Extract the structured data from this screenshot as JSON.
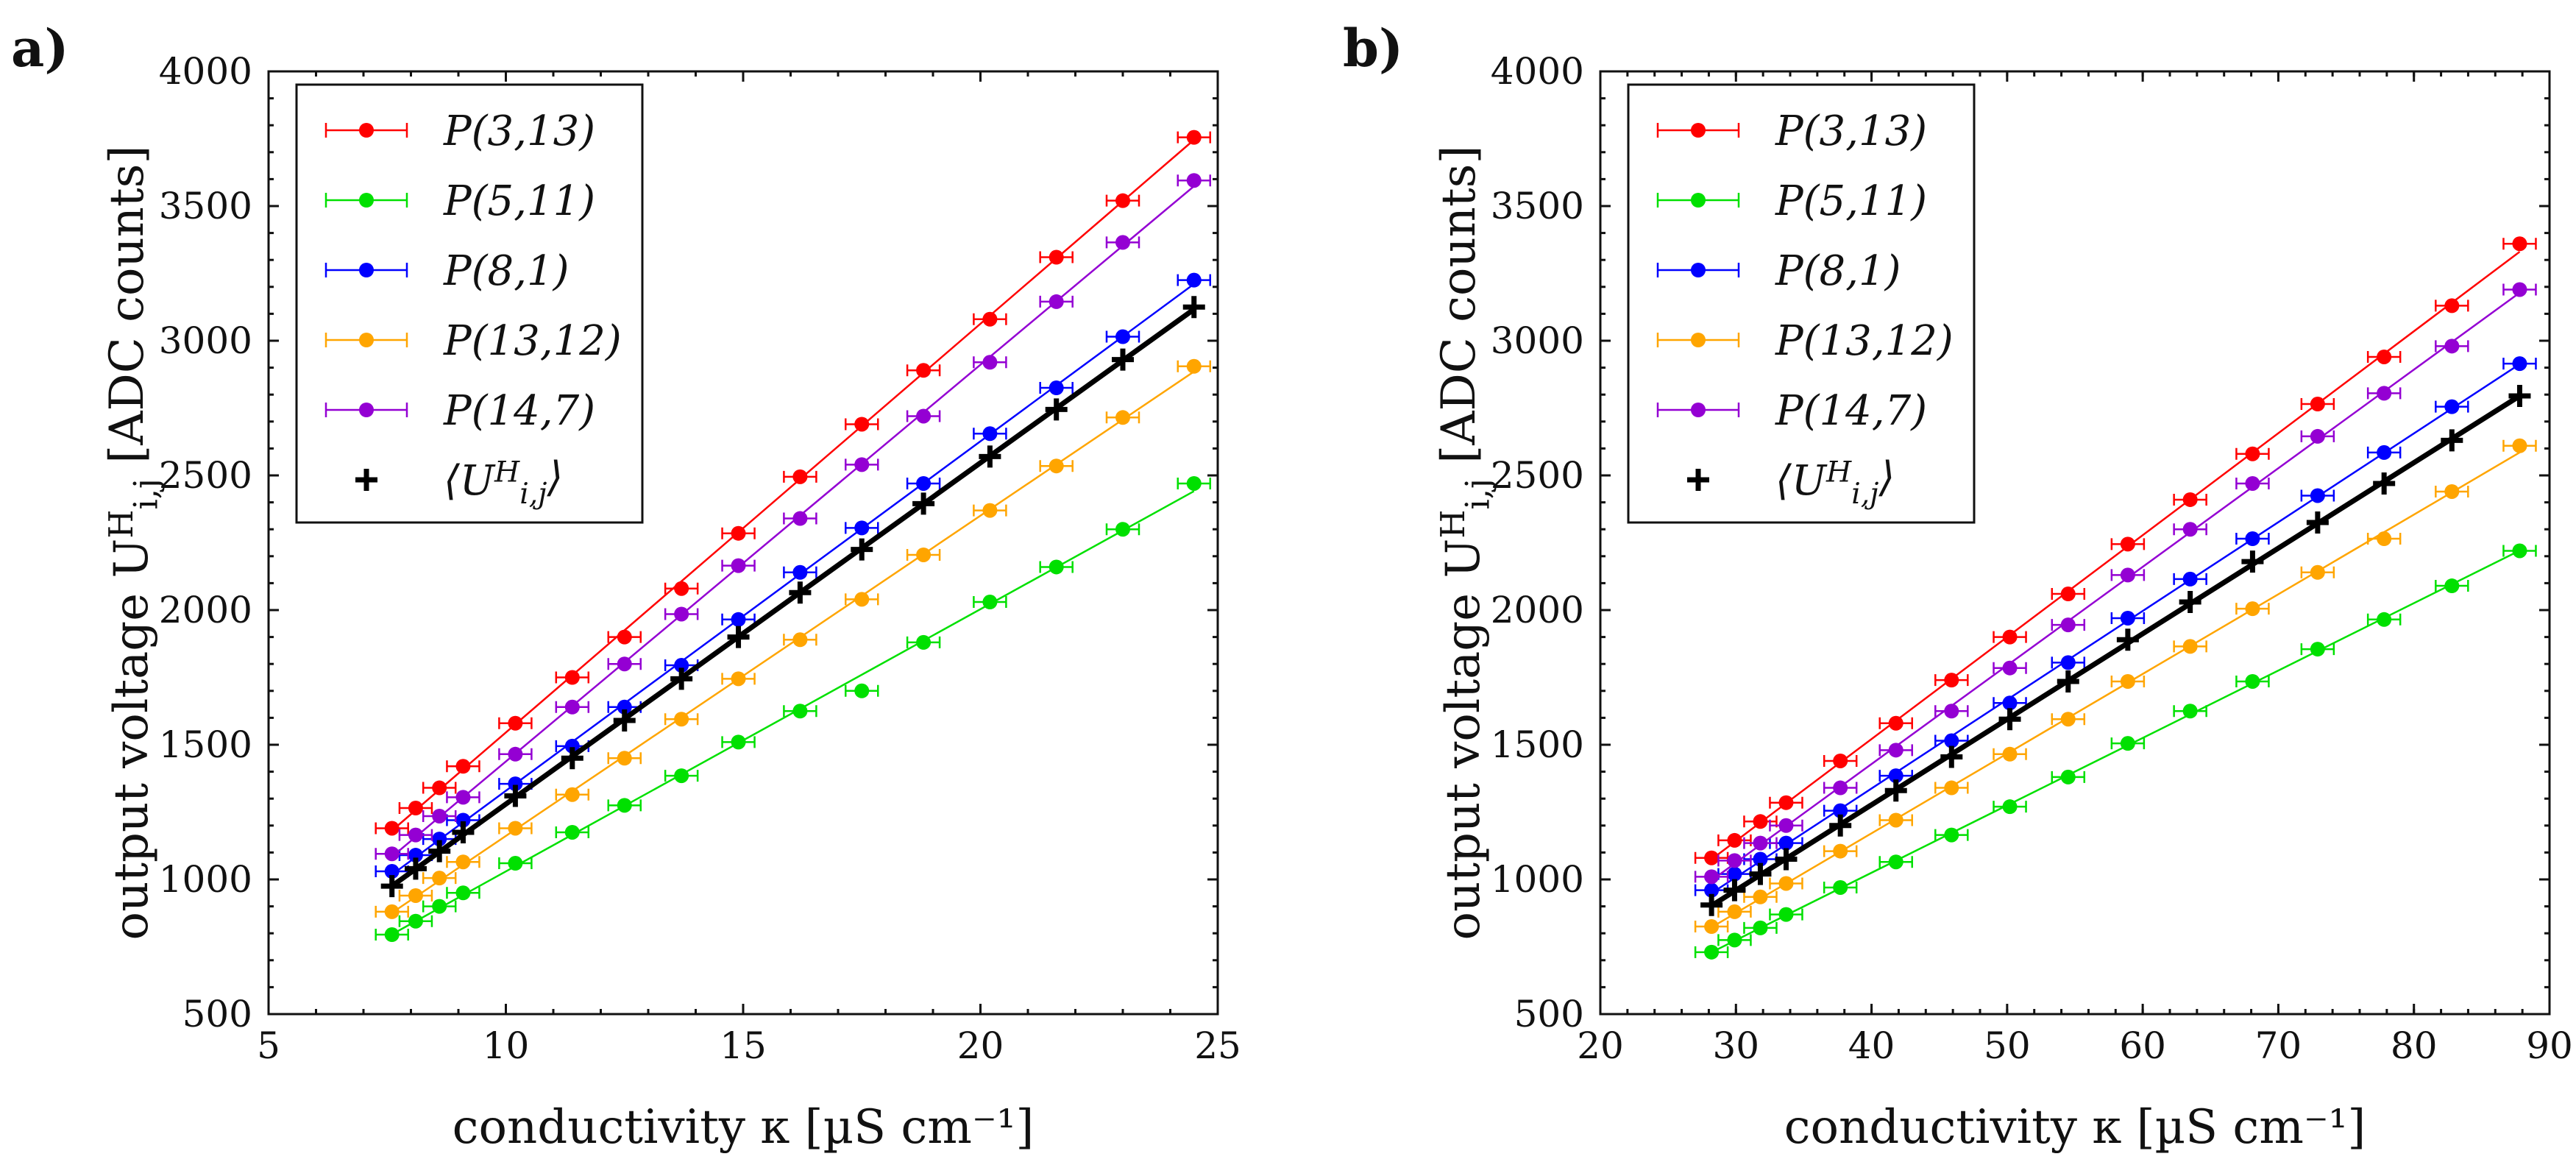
{
  "chart_data": [
    {
      "type": "scatter",
      "panel_label": "a)",
      "xlabel": "conductivity κ [µS cm⁻¹]",
      "ylabel": "output voltage U^H_{i,j} [ADC counts]",
      "xlim": [
        5,
        25
      ],
      "ylim": [
        500,
        4000
      ],
      "xticks": [
        5,
        10,
        15,
        20,
        25
      ],
      "yticks": [
        500,
        1000,
        1500,
        2000,
        2500,
        3000,
        3500,
        4000
      ],
      "grid": false,
      "legend_position": "top-left",
      "x": [
        7.6,
        8.1,
        8.6,
        9.1,
        10.2,
        11.4,
        12.5,
        13.7,
        14.9,
        16.2,
        17.5,
        18.8,
        20.2,
        21.6,
        23.0,
        24.5
      ],
      "series": [
        {
          "name": "P(3,13)",
          "color": "#ff0000",
          "marker": "dot",
          "values": [
            1190,
            1265,
            1340,
            1420,
            1580,
            1750,
            1900,
            2080,
            2285,
            2495,
            2690,
            2890,
            3080,
            3310,
            3520,
            3755
          ]
        },
        {
          "name": "P(5,11)",
          "color": "#00e000",
          "marker": "dot",
          "values": [
            795,
            845,
            900,
            950,
            1060,
            1175,
            1275,
            1385,
            1510,
            1625,
            1700,
            1880,
            2030,
            2160,
            2300,
            2470
          ]
        },
        {
          "name": "P(8,1)",
          "color": "#0000ff",
          "marker": "dot",
          "values": [
            1030,
            1090,
            1150,
            1220,
            1355,
            1495,
            1640,
            1795,
            1965,
            2140,
            2305,
            2470,
            2655,
            2825,
            3015,
            3225
          ]
        },
        {
          "name": "P(13,12)",
          "color": "#ffa500",
          "marker": "dot",
          "values": [
            880,
            940,
            1005,
            1065,
            1190,
            1315,
            1450,
            1595,
            1745,
            1890,
            2040,
            2205,
            2370,
            2535,
            2715,
            2905
          ]
        },
        {
          "name": "P(14,7)",
          "color": "#9400d3",
          "marker": "dot",
          "values": [
            1095,
            1165,
            1235,
            1305,
            1465,
            1640,
            1800,
            1985,
            2165,
            2340,
            2540,
            2720,
            2920,
            3145,
            3365,
            3595
          ]
        },
        {
          "name": "⟨U^H_{i,j}⟩",
          "color": "#000000",
          "marker": "plus",
          "values": [
            975,
            1040,
            1105,
            1175,
            1310,
            1450,
            1590,
            1745,
            1900,
            2065,
            2225,
            2395,
            2570,
            2745,
            2930,
            3125
          ]
        }
      ]
    },
    {
      "type": "scatter",
      "panel_label": "b)",
      "xlabel": "conductivity κ [µS cm⁻¹]",
      "ylabel": "output voltage U^H_{i,j} [ADC counts]",
      "xlim": [
        20,
        90
      ],
      "ylim": [
        500,
        4000
      ],
      "xticks": [
        20,
        30,
        40,
        50,
        60,
        70,
        80,
        90
      ],
      "yticks": [
        500,
        1000,
        1500,
        2000,
        2500,
        3000,
        3500,
        4000
      ],
      "grid": false,
      "legend_position": "top-left",
      "x": [
        28.2,
        29.9,
        31.8,
        33.7,
        37.7,
        41.8,
        45.9,
        50.2,
        54.5,
        58.9,
        63.5,
        68.1,
        72.9,
        77.8,
        82.8,
        87.8
      ],
      "series": [
        {
          "name": "P(3,13)",
          "color": "#ff0000",
          "marker": "dot",
          "values": [
            1080,
            1145,
            1215,
            1285,
            1440,
            1580,
            1740,
            1900,
            2060,
            2245,
            2410,
            2580,
            2765,
            2940,
            3130,
            3360
          ]
        },
        {
          "name": "P(5,11)",
          "color": "#00e000",
          "marker": "dot",
          "values": [
            730,
            775,
            820,
            870,
            970,
            1065,
            1165,
            1270,
            1380,
            1505,
            1625,
            1735,
            1855,
            1965,
            2090,
            2220
          ]
        },
        {
          "name": "P(8,1)",
          "color": "#0000ff",
          "marker": "dot",
          "values": [
            960,
            1020,
            1075,
            1135,
            1255,
            1385,
            1515,
            1655,
            1805,
            1970,
            2115,
            2265,
            2425,
            2585,
            2755,
            2915
          ]
        },
        {
          "name": "P(13,12)",
          "color": "#ffa500",
          "marker": "dot",
          "values": [
            825,
            880,
            935,
            985,
            1105,
            1220,
            1340,
            1465,
            1595,
            1735,
            1865,
            2005,
            2140,
            2265,
            2440,
            2610
          ]
        },
        {
          "name": "P(14,7)",
          "color": "#9400d3",
          "marker": "dot",
          "values": [
            1010,
            1070,
            1135,
            1200,
            1340,
            1480,
            1625,
            1785,
            1945,
            2130,
            2300,
            2470,
            2645,
            2805,
            2980,
            3190
          ]
        },
        {
          "name": "⟨U^H_{i,j}⟩",
          "color": "#000000",
          "marker": "plus",
          "values": [
            905,
            960,
            1020,
            1075,
            1200,
            1330,
            1455,
            1595,
            1735,
            1890,
            2030,
            2180,
            2325,
            2470,
            2630,
            2795
          ]
        }
      ]
    }
  ]
}
